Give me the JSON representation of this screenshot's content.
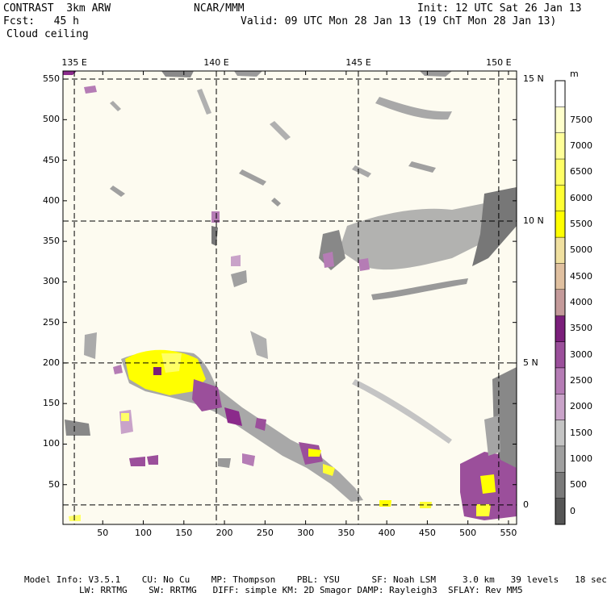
{
  "header": {
    "model_title": "CONTRAST  3km ARW",
    "forecast": "Fcst:   45 h",
    "field_name": "Cloud ceiling",
    "center": "NCAR/MMM",
    "init": "Init: 12 UTC Sat 26 Jan 13",
    "valid": "Valid: 09 UTC Mon 28 Jan 13 (19 ChT Mon 28 Jan 13)"
  },
  "map": {
    "lon_labels": [
      "135 E",
      "140 E",
      "145 E",
      "150 E"
    ],
    "lat_labels": [
      "15 N",
      "10 N",
      "5 N",
      "0"
    ],
    "x_ticks": [
      "50",
      "100",
      "150",
      "200",
      "250",
      "300",
      "350",
      "400",
      "450",
      "500",
      "550"
    ],
    "y_ticks": [
      "550",
      "500",
      "450",
      "400",
      "350",
      "300",
      "250",
      "200",
      "150",
      "100",
      "50"
    ],
    "x_range": [
      1,
      560
    ],
    "y_range": [
      1,
      560
    ],
    "background_color": "#fdfbf0",
    "lon_lines_x_grid": [
      15,
      190,
      365,
      538
    ],
    "lat_lines_y_grid": [
      25,
      200,
      375,
      550
    ]
  },
  "colorbar": {
    "unit": "m",
    "levels": [
      "0",
      "500",
      "1000",
      "1500",
      "2000",
      "2500",
      "3000",
      "3500",
      "4000",
      "4500",
      "5000",
      "5500",
      "6000",
      "6500",
      "7000",
      "7500"
    ],
    "colors": [
      "#555555",
      "#7a7a7a",
      "#a0a0a0",
      "#c4c4c4",
      "#c9a3c9",
      "#b57cb5",
      "#9b4f9b",
      "#7b1f7b",
      "#c49a9a",
      "#e0c0a0",
      "#f0e0a0",
      "#ffff00",
      "#ffff33",
      "#ffff66",
      "#ffff99",
      "#ffffcc",
      "#ffffff"
    ]
  },
  "footer": {
    "line1": "Model Info: V3.5.1    CU: No Cu    MP: Thompson    PBL: YSU      SF: Noah LSM     3.0 km   39 levels   18 sec",
    "line2": "LW: RRTMG    SW: RRTMG   DIFF: simple KM: 2D Smagor DAMP: Rayleigh3  SFLAY: Rev MM5"
  }
}
